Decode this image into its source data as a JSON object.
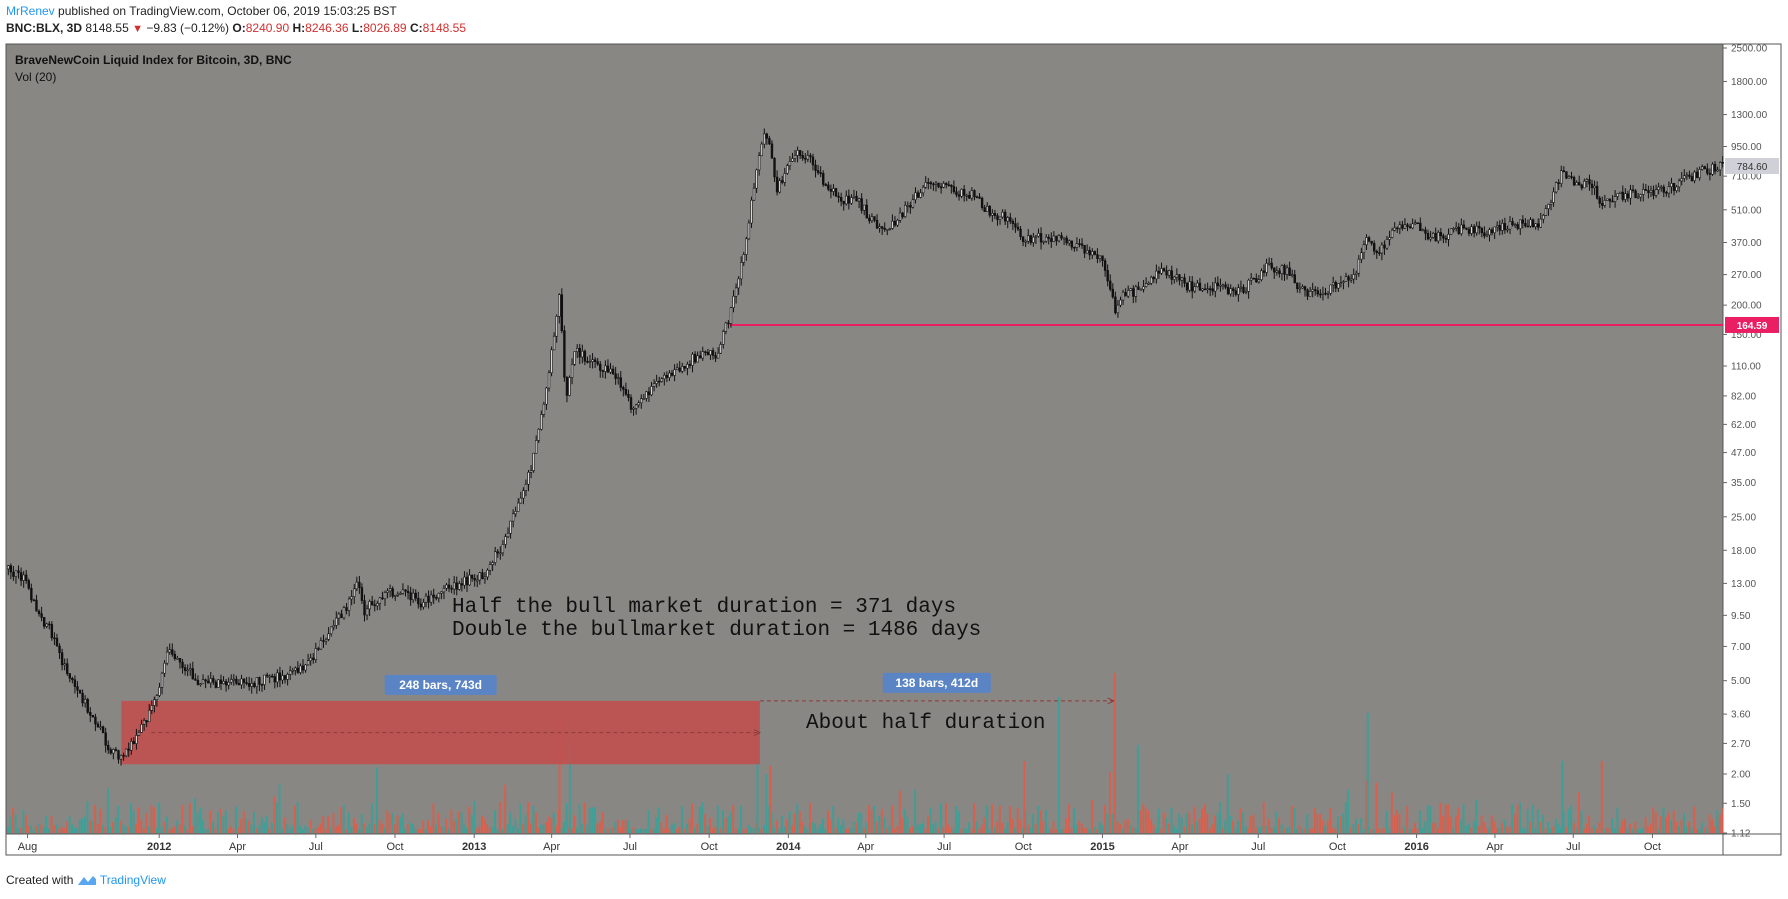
{
  "header": {
    "author": "MrRenev",
    "published": "published on TradingView.com, October 06, 2019 15:03:25 BST",
    "symbol": "BNC:BLX, 3D",
    "price": "8148.55",
    "change_icon": "down-triangle-icon",
    "change": "−9.83 (−0.12%)",
    "open_label": "O:",
    "open": "8240.90",
    "high_label": "H:",
    "high": "8246.36",
    "low_label": "L:",
    "low": "8026.89",
    "close_label": "C:",
    "close": "8148.55"
  },
  "footer": {
    "created_with": "Created with",
    "brand": "TradingView"
  },
  "colors": {
    "background": "#898784",
    "pane_border": "#555555",
    "candle": "#111111",
    "vol_up": "#3f9e96",
    "vol_down": "#d6604d",
    "support_line": "#e91e63",
    "range_box": "#c1504f",
    "label_bg": "#5b84c4",
    "price_tag_bg": "#d0d0d8"
  },
  "chart_data": {
    "type": "candlestick",
    "title": "BraveNewCoin Liquid Index for Bitcoin, 3D, BNC",
    "volume_label": "Vol (20)",
    "scale": "log",
    "ylim": [
      1.0,
      2600
    ],
    "y_ticks": [
      "2500.00",
      "1800.00",
      "1300.00",
      "950.00",
      "710.00",
      "510.00",
      "370.00",
      "270.00",
      "200.00",
      "150.00",
      "110.00",
      "82.00",
      "62.00",
      "47.00",
      "35.00",
      "25.00",
      "18.00",
      "13.00",
      "9.50",
      "7.00",
      "5.00",
      "3.60",
      "2.70",
      "2.00",
      "1.50",
      "1.12"
    ],
    "x_ticks": [
      {
        "label": "Aug",
        "t": "2011-08-01"
      },
      {
        "label": "2012",
        "t": "2012-01-01"
      },
      {
        "label": "Apr",
        "t": "2012-04-01"
      },
      {
        "label": "Jul",
        "t": "2012-07-01"
      },
      {
        "label": "Oct",
        "t": "2012-10-01"
      },
      {
        "label": "2013",
        "t": "2013-01-01"
      },
      {
        "label": "Apr",
        "t": "2013-04-01"
      },
      {
        "label": "Jul",
        "t": "2013-07-01"
      },
      {
        "label": "Oct",
        "t": "2013-10-01"
      },
      {
        "label": "2014",
        "t": "2014-01-01"
      },
      {
        "label": "Apr",
        "t": "2014-04-01"
      },
      {
        "label": "Jul",
        "t": "2014-07-01"
      },
      {
        "label": "Oct",
        "t": "2014-10-01"
      },
      {
        "label": "2015",
        "t": "2015-01-01"
      },
      {
        "label": "Apr",
        "t": "2015-04-01"
      },
      {
        "label": "Jul",
        "t": "2015-07-01"
      },
      {
        "label": "Oct",
        "t": "2015-10-01"
      },
      {
        "label": "2016",
        "t": "2016-01-01"
      },
      {
        "label": "Apr",
        "t": "2016-04-01"
      },
      {
        "label": "Jul",
        "t": "2016-07-01"
      },
      {
        "label": "Oct",
        "t": "2016-10-01"
      }
    ],
    "x_range": [
      "2011-07-07",
      "2016-12-22"
    ],
    "price_path": [
      {
        "t": "2011-07-08",
        "v": 15.0
      },
      {
        "t": "2011-07-28",
        "v": 13.5
      },
      {
        "t": "2011-08-10",
        "v": 10.0
      },
      {
        "t": "2011-08-28",
        "v": 8.0
      },
      {
        "t": "2011-09-15",
        "v": 5.2
      },
      {
        "t": "2011-10-05",
        "v": 4.0
      },
      {
        "t": "2011-10-20",
        "v": 3.2
      },
      {
        "t": "2011-11-05",
        "v": 2.5
      },
      {
        "t": "2011-11-18",
        "v": 2.3
      },
      {
        "t": "2011-12-05",
        "v": 2.9
      },
      {
        "t": "2011-12-25",
        "v": 4.0
      },
      {
        "t": "2012-01-10",
        "v": 6.8
      },
      {
        "t": "2012-01-25",
        "v": 6.0
      },
      {
        "t": "2012-02-15",
        "v": 5.0
      },
      {
        "t": "2012-03-10",
        "v": 4.8
      },
      {
        "t": "2012-04-10",
        "v": 4.9
      },
      {
        "t": "2012-05-10",
        "v": 5.1
      },
      {
        "t": "2012-06-10",
        "v": 5.5
      },
      {
        "t": "2012-07-01",
        "v": 6.7
      },
      {
        "t": "2012-07-20",
        "v": 8.5
      },
      {
        "t": "2012-08-10",
        "v": 11.0
      },
      {
        "t": "2012-08-17",
        "v": 13.5
      },
      {
        "t": "2012-08-25",
        "v": 10.0
      },
      {
        "t": "2012-09-20",
        "v": 12.0
      },
      {
        "t": "2012-10-10",
        "v": 12.0
      },
      {
        "t": "2012-10-30",
        "v": 10.8
      },
      {
        "t": "2012-11-20",
        "v": 12.0
      },
      {
        "t": "2012-12-20",
        "v": 13.3
      },
      {
        "t": "2013-01-10",
        "v": 14.0
      },
      {
        "t": "2013-02-01",
        "v": 19.0
      },
      {
        "t": "2013-02-20",
        "v": 28.0
      },
      {
        "t": "2013-03-10",
        "v": 45.0
      },
      {
        "t": "2013-03-25",
        "v": 90.0
      },
      {
        "t": "2013-04-09",
        "v": 230.0
      },
      {
        "t": "2013-04-16",
        "v": 80.0
      },
      {
        "t": "2013-04-28",
        "v": 130.0
      },
      {
        "t": "2013-05-15",
        "v": 115.0
      },
      {
        "t": "2013-06-10",
        "v": 105.0
      },
      {
        "t": "2013-07-05",
        "v": 70.0
      },
      {
        "t": "2013-07-25",
        "v": 90.0
      },
      {
        "t": "2013-08-20",
        "v": 105.0
      },
      {
        "t": "2013-09-20",
        "v": 125.0
      },
      {
        "t": "2013-10-10",
        "v": 125.0
      },
      {
        "t": "2013-10-25",
        "v": 190.0
      },
      {
        "t": "2013-11-10",
        "v": 350.0
      },
      {
        "t": "2013-11-25",
        "v": 800.0
      },
      {
        "t": "2013-12-04",
        "v": 1150.0
      },
      {
        "t": "2013-12-18",
        "v": 620.0
      },
      {
        "t": "2014-01-05",
        "v": 900.0
      },
      {
        "t": "2014-01-25",
        "v": 820.0
      },
      {
        "t": "2014-02-10",
        "v": 680.0
      },
      {
        "t": "2014-02-28",
        "v": 560.0
      },
      {
        "t": "2014-03-20",
        "v": 570.0
      },
      {
        "t": "2014-04-10",
        "v": 440.0
      },
      {
        "t": "2014-05-01",
        "v": 440.0
      },
      {
        "t": "2014-05-25",
        "v": 560.0
      },
      {
        "t": "2014-06-05",
        "v": 650.0
      },
      {
        "t": "2014-07-01",
        "v": 630.0
      },
      {
        "t": "2014-08-01",
        "v": 590.0
      },
      {
        "t": "2014-08-20",
        "v": 500.0
      },
      {
        "t": "2014-09-10",
        "v": 470.0
      },
      {
        "t": "2014-09-30",
        "v": 380.0
      },
      {
        "t": "2014-10-15",
        "v": 390.0
      },
      {
        "t": "2014-11-10",
        "v": 380.0
      },
      {
        "t": "2014-12-10",
        "v": 340.0
      },
      {
        "t": "2014-12-31",
        "v": 315.0
      },
      {
        "t": "2015-01-14",
        "v": 190.0
      },
      {
        "t": "2015-01-20",
        "v": 220.0
      },
      {
        "t": "2015-02-10",
        "v": 230.0
      },
      {
        "t": "2015-03-10",
        "v": 280.0
      },
      {
        "t": "2015-04-10",
        "v": 240.0
      },
      {
        "t": "2015-05-10",
        "v": 240.0
      },
      {
        "t": "2015-06-10",
        "v": 230.0
      },
      {
        "t": "2015-07-10",
        "v": 290.0
      },
      {
        "t": "2015-08-01",
        "v": 280.0
      },
      {
        "t": "2015-08-25",
        "v": 220.0
      },
      {
        "t": "2015-09-20",
        "v": 235.0
      },
      {
        "t": "2015-10-20",
        "v": 270.0
      },
      {
        "t": "2015-11-04",
        "v": 400.0
      },
      {
        "t": "2015-11-12",
        "v": 330.0
      },
      {
        "t": "2015-12-10",
        "v": 430.0
      },
      {
        "t": "2016-01-01",
        "v": 430.0
      },
      {
        "t": "2016-01-20",
        "v": 385.0
      },
      {
        "t": "2016-02-20",
        "v": 420.0
      },
      {
        "t": "2016-03-20",
        "v": 415.0
      },
      {
        "t": "2016-04-20",
        "v": 445.0
      },
      {
        "t": "2016-05-20",
        "v": 450.0
      },
      {
        "t": "2016-06-01",
        "v": 540.0
      },
      {
        "t": "2016-06-17",
        "v": 740.0
      },
      {
        "t": "2016-07-01",
        "v": 670.0
      },
      {
        "t": "2016-07-20",
        "v": 660.0
      },
      {
        "t": "2016-08-02",
        "v": 540.0
      },
      {
        "t": "2016-08-20",
        "v": 580.0
      },
      {
        "t": "2016-09-20",
        "v": 605.0
      },
      {
        "t": "2016-10-20",
        "v": 630.0
      },
      {
        "t": "2016-11-20",
        "v": 735.0
      },
      {
        "t": "2016-12-22",
        "v": 784.6
      }
    ],
    "last_price_tag": "784.60",
    "support_level": {
      "value": 164.59,
      "label": "164.59",
      "from": "2013-10-25"
    },
    "bull_range": {
      "label": "248 bars, 743d",
      "from": "2011-11-18",
      "to": "2013-11-29",
      "top": 4.1,
      "bottom": 2.2
    },
    "projection_range": {
      "label": "138 bars, 412d",
      "from": "2013-11-29",
      "to": "2015-01-14",
      "level": 4.1
    },
    "annotations": [
      "Half the bull market duration = 371 days",
      "Double the bullmarket duration = 1486 days",
      "About half duration"
    ],
    "volume_spikes": [
      {
        "t": "2013-04-09",
        "v": 0.72,
        "c": "down"
      },
      {
        "t": "2013-04-21",
        "v": 0.55,
        "c": "up"
      },
      {
        "t": "2013-11-25",
        "v": 0.45,
        "c": "up"
      },
      {
        "t": "2013-12-10",
        "v": 0.42,
        "c": "down"
      },
      {
        "t": "2014-10-01",
        "v": 0.45,
        "c": "down"
      },
      {
        "t": "2014-11-10",
        "v": 0.85,
        "c": "up"
      },
      {
        "t": "2015-01-14",
        "v": 1.0,
        "c": "down"
      },
      {
        "t": "2015-02-10",
        "v": 0.55,
        "c": "up"
      },
      {
        "t": "2015-11-04",
        "v": 0.75,
        "c": "up"
      },
      {
        "t": "2016-06-17",
        "v": 0.45,
        "c": "up"
      },
      {
        "t": "2016-08-02",
        "v": 0.45,
        "c": "down"
      }
    ]
  }
}
